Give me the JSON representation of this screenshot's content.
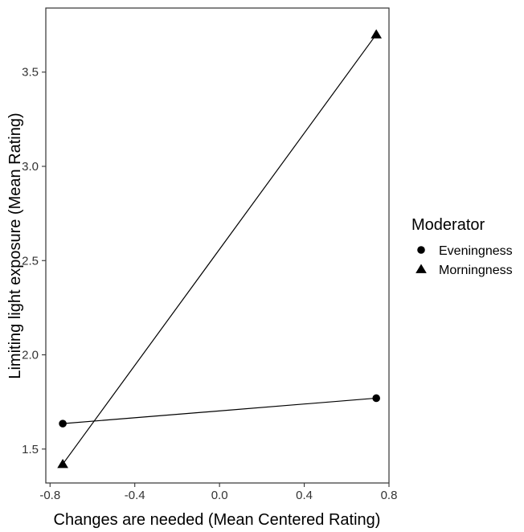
{
  "chart_data": {
    "type": "line",
    "xlabel": "Changes are needed (Mean Centered Rating)",
    "ylabel": "Limiting light exposure (Mean Rating)",
    "xlim": [
      -0.82,
      0.8
    ],
    "ylim": [
      1.32,
      3.84
    ],
    "x_ticks": [
      -0.8,
      -0.4,
      0.0,
      0.4,
      0.8
    ],
    "x_tick_labels": [
      "-0.8",
      "-0.4",
      "0.0",
      "0.4",
      "0.8"
    ],
    "y_ticks": [
      1.5,
      2.0,
      2.5,
      3.0,
      3.5
    ],
    "y_tick_labels": [
      "1.5",
      "2.0",
      "2.5",
      "3.0",
      "3.5"
    ],
    "grid": false,
    "legend": {
      "title": "Moderator",
      "placement": "right"
    },
    "series": [
      {
        "name": "Eveningness",
        "marker": "circle",
        "x": [
          -0.74,
          0.74
        ],
        "y": [
          1.635,
          1.77
        ]
      },
      {
        "name": "Morningness",
        "marker": "triangle",
        "x": [
          -0.74,
          0.74
        ],
        "y": [
          1.42,
          3.7
        ]
      }
    ]
  }
}
